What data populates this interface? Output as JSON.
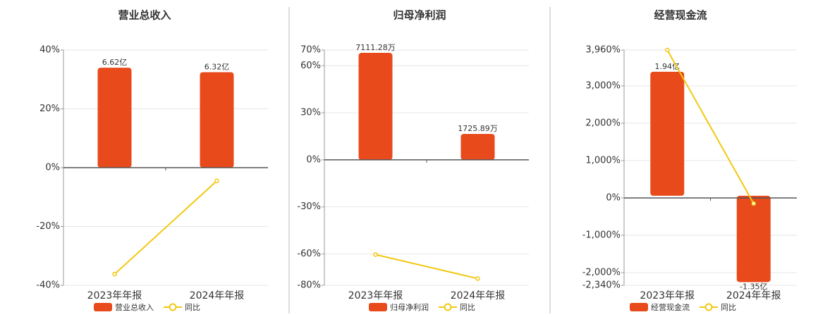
{
  "chart_data": [
    {
      "type": "bar",
      "title": "营业总收入",
      "categories": [
        "2023年年报",
        "2024年年报"
      ],
      "series": [
        {
          "name": "营业总收入",
          "type": "bar",
          "axis": "y2",
          "color": "#e84a1b",
          "values": [
            6.62,
            6.32
          ],
          "value_labels": [
            "6.62亿",
            "6.32亿"
          ]
        },
        {
          "name": "同比",
          "type": "line",
          "color": "#f2c811",
          "values": [
            -36.2,
            -4.5
          ]
        }
      ],
      "ylim": [
        -40,
        40
      ],
      "yticks": [
        {
          "value": -40,
          "label": "-40%"
        },
        {
          "value": -20,
          "label": "-20%"
        },
        {
          "value": 0,
          "label": "0%"
        },
        {
          "value": 20,
          "label": "20%"
        },
        {
          "value": 40,
          "label": "40%"
        }
      ],
      "y2lim": [
        -7.79,
        7.79
      ],
      "grid": true
    },
    {
      "type": "bar",
      "title": "归母净利润",
      "categories": [
        "2023年年报",
        "2024年年报"
      ],
      "series": [
        {
          "name": "归母净利润",
          "type": "bar",
          "axis": "y2",
          "color": "#e84a1b",
          "values": [
            7111.28,
            1725.89
          ],
          "value_labels": [
            "7111.28万",
            "1725.89万"
          ]
        },
        {
          "name": "同比",
          "type": "line",
          "color": "#f2c811",
          "values": [
            -60.4,
            -75.7
          ]
        }
      ],
      "ylim": [
        -80,
        70
      ],
      "yticks": [
        {
          "value": -80,
          "label": "-80%"
        },
        {
          "value": -60,
          "label": "-60%"
        },
        {
          "value": -30,
          "label": "-30%"
        },
        {
          "value": 0,
          "label": "0%"
        },
        {
          "value": 30,
          "label": "30%"
        },
        {
          "value": 60,
          "label": "60%"
        },
        {
          "value": 70,
          "label": "70%"
        }
      ],
      "y2lim": [
        -8330,
        7300
      ],
      "grid": true
    },
    {
      "type": "bar",
      "title": "经营现金流",
      "categories": [
        "2023年年报",
        "2024年年报"
      ],
      "series": [
        {
          "name": "经营现金流",
          "type": "bar",
          "axis": "y2",
          "color": "#e84a1b",
          "values": [
            1.94,
            -1.35
          ],
          "value_labels": [
            "1.94亿",
            "-1.35亿"
          ]
        },
        {
          "name": "同比",
          "type": "line",
          "color": "#f2c811",
          "values": [
            3960,
            -150
          ]
        }
      ],
      "ylim": [
        -2340,
        3960
      ],
      "yticks": [
        {
          "value": -2340,
          "label": "-2,340%"
        },
        {
          "value": -2000,
          "label": "-2,000%"
        },
        {
          "value": -1000,
          "label": "-1,000%"
        },
        {
          "value": 0,
          "label": "0%"
        },
        {
          "value": 1000,
          "label": "1,000%"
        },
        {
          "value": 2000,
          "label": "2,000%"
        },
        {
          "value": 3000,
          "label": "3,000%"
        },
        {
          "value": 3960,
          "label": "3,960%"
        }
      ],
      "y2lim": [
        -1.4,
        2.28
      ],
      "grid": true
    }
  ]
}
